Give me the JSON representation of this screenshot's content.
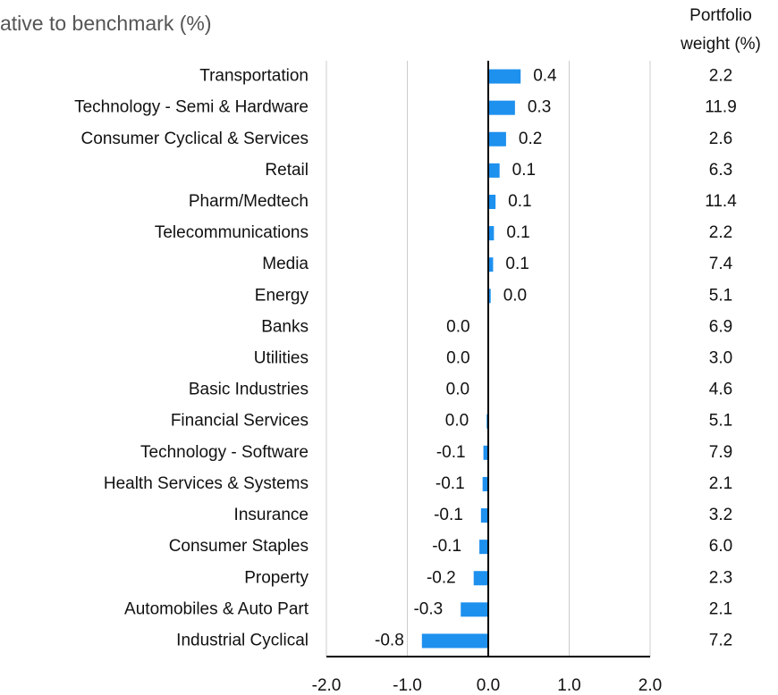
{
  "chart_data": {
    "type": "hbar",
    "subtitle": "ative to benchmark (%)",
    "weight_header": [
      "Portfolio",
      "weight (%)"
    ],
    "categories": [
      "Transportation",
      "Technology - Semi & Hardware",
      "Consumer Cyclical & Services",
      "Retail",
      "Pharm/Medtech",
      "Telecommunications",
      "Media",
      "Energy",
      "Banks",
      "Utilities",
      "Basic Industries",
      "Financial Services",
      "Technology - Software",
      "Health Services & Systems",
      "Insurance",
      "Consumer Staples",
      "Property",
      "Automobiles & Auto Part",
      "Industrial Cyclical"
    ],
    "values": [
      0.4,
      0.33,
      0.22,
      0.14,
      0.09,
      0.07,
      0.06,
      0.03,
      -0.005,
      -0.005,
      -0.01,
      -0.02,
      -0.06,
      -0.07,
      -0.09,
      -0.11,
      -0.18,
      -0.34,
      -0.82
    ],
    "value_labels": [
      "0.4",
      "0.3",
      "0.2",
      "0.1",
      "0.1",
      "0.1",
      "0.1",
      "0.0",
      "0.0",
      "0.0",
      "0.0",
      "0.0",
      "-0.1",
      "-0.1",
      "-0.1",
      "-0.1",
      "-0.2",
      "-0.3",
      "-0.8"
    ],
    "weights": [
      2.2,
      11.9,
      2.6,
      6.3,
      11.4,
      2.2,
      7.4,
      5.1,
      6.9,
      {
        "value": 3,
        "label": "3.0"
      },
      4.6,
      5.1,
      7.9,
      2.1,
      3.2,
      {
        "value": 6,
        "label": "6.0"
      },
      2.3,
      2.1,
      7.2
    ],
    "color": "#1e90ee",
    "xlim": [
      -2,
      2
    ],
    "xticks": [
      {
        "value": -2,
        "label": "-2.0"
      },
      {
        "value": -1,
        "label": "-1.0"
      },
      {
        "value": 0,
        "label": "0.0"
      },
      {
        "value": 1,
        "label": "1.0"
      },
      {
        "value": 2,
        "label": "2.0"
      }
    ],
    "grid": true
  }
}
